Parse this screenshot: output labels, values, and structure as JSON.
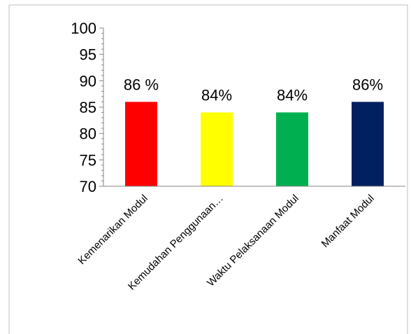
{
  "chart_data": {
    "type": "bar",
    "title": "",
    "xlabel": "",
    "ylabel": "",
    "categories": [
      "Kemenarikan Modul",
      "Kemudahan Penggunaan…",
      "Waktu Pelaksanaan Modul",
      "Manfaat Modul"
    ],
    "values": [
      86,
      84,
      84,
      86
    ],
    "data_labels": [
      "86 %",
      "84%",
      "84%",
      "86%"
    ],
    "colors": [
      "#ff0000",
      "#ffff00",
      "#00b050",
      "#002060"
    ],
    "ylim": [
      70,
      100
    ],
    "yticks": [
      70,
      75,
      80,
      85,
      90,
      95,
      100
    ],
    "ytick_labels": [
      "70",
      "75",
      "80",
      "85",
      "90",
      "95",
      "100"
    ],
    "grid": false,
    "legend": "none"
  }
}
